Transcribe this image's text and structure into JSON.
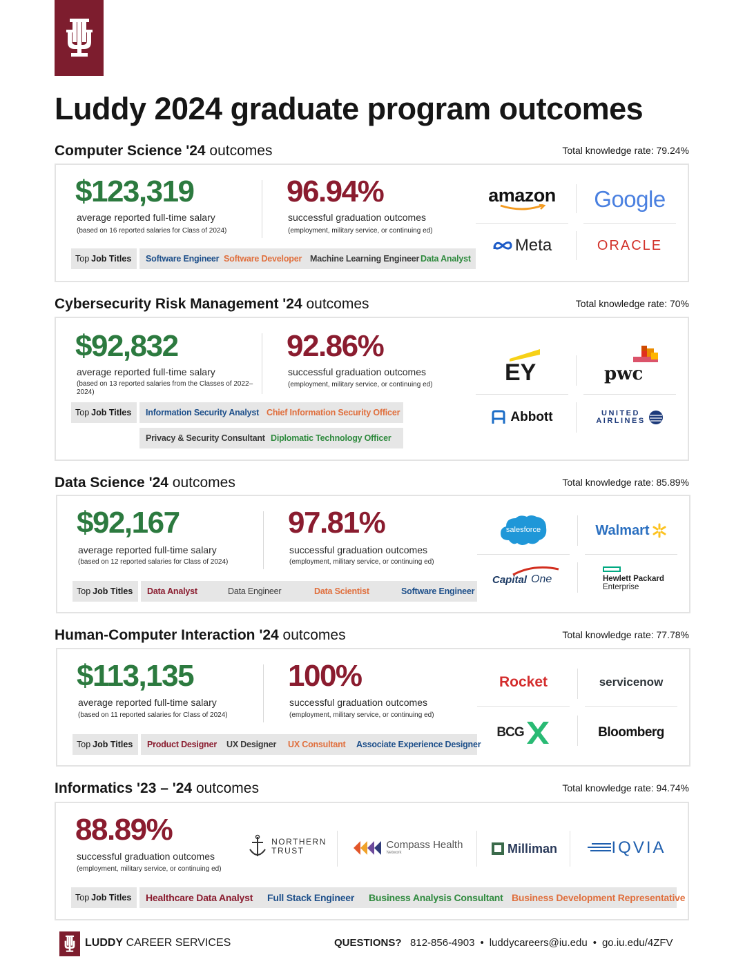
{
  "title": "Luddy 2024 graduate program outcomes",
  "shared": {
    "salary_label": "average reported full-time salary",
    "rate_label": "successful graduation outcomes",
    "rate_note": "(employment, military service, or continuing ed)",
    "top": "Top",
    "job_titles": "Job Titles"
  },
  "cs": {
    "name": "Computer Science '24",
    "suffix": "outcomes",
    "knowledge_rate": "Total knowledge rate: 79.24%",
    "salary": "$123,319",
    "salary_note": "(based on 16 reported salaries for Class of 2024)",
    "rate": "96.94%",
    "jobs": [
      "Software Engineer",
      "Software Developer",
      "Machine Learning Engineer",
      "Data Analyst"
    ],
    "logos": [
      "amazon",
      "Google",
      "Meta",
      "ORACLE"
    ]
  },
  "crm": {
    "name": "Cybersecurity Risk Management '24",
    "suffix": "outcomes",
    "knowledge_rate": "Total knowledge rate: 70%",
    "salary": "$92,832",
    "salary_note": "(based on 13 reported salaries from the Classes of 2022–2024)",
    "rate": "92.86%",
    "jobs": [
      "Information Security Analyst",
      "Chief Information Security Officer",
      "Privacy & Security Consultant",
      "Diplomatic Technology Officer"
    ],
    "logos": [
      "EY",
      "pwc",
      "Abbott",
      "UNITED",
      "AIRLINES"
    ]
  },
  "ds": {
    "name": "Data Science '24",
    "suffix": "outcomes",
    "knowledge_rate": "Total knowledge rate: 85.89%",
    "salary": "$92,167",
    "salary_note": "(based on 12 reported salaries for Class of 2024)",
    "rate": "97.81%",
    "jobs": [
      "Data Analyst",
      "Data Engineer",
      "Data Scientist",
      "Software Engineer"
    ],
    "logos": [
      "salesforce",
      "Walmart",
      "Capital",
      "One",
      "Hewlett Packard",
      "Enterprise"
    ]
  },
  "hci": {
    "name": "Human-Computer Interaction '24",
    "suffix": "outcomes",
    "knowledge_rate": "Total knowledge rate: 77.78%",
    "salary": "$113,135",
    "salary_note": "(based on 11 reported salaries for Class of 2024)",
    "rate": "100%",
    "jobs": [
      "Product Designer",
      "UX Designer",
      "UX Consultant",
      "Associate Experience Designer"
    ],
    "logos": [
      "Rocket",
      "servicenow",
      "BCG",
      "Bloomberg"
    ]
  },
  "inf": {
    "name": "Informatics '23 – '24",
    "suffix": "outcomes",
    "knowledge_rate": "Total knowledge rate: 94.74%",
    "rate": "88.89%",
    "jobs": [
      "Healthcare Data Analyst",
      "Full Stack Engineer",
      "Business Analysis Consultant",
      "Business Development Representative"
    ],
    "logos": [
      "NORTHERN",
      "TRUST",
      "Compass Health",
      "Network",
      "Milliman",
      "IQVIA"
    ]
  },
  "footer": {
    "brand_bold": "LUDDY",
    "brand_rest": "CAREER SERVICES",
    "questions": "QUESTIONS?",
    "phone": "812-856-4903",
    "email": "luddycareers@iu.edu",
    "url": "go.iu.edu/4ZFV",
    "sep": "•"
  },
  "colors": {
    "crimson": "#7d1d2e",
    "green": "#2c7a3f",
    "rate_red": "#8a1c2f",
    "blue": "#1d4f8a",
    "orange": "#e06f3d"
  }
}
